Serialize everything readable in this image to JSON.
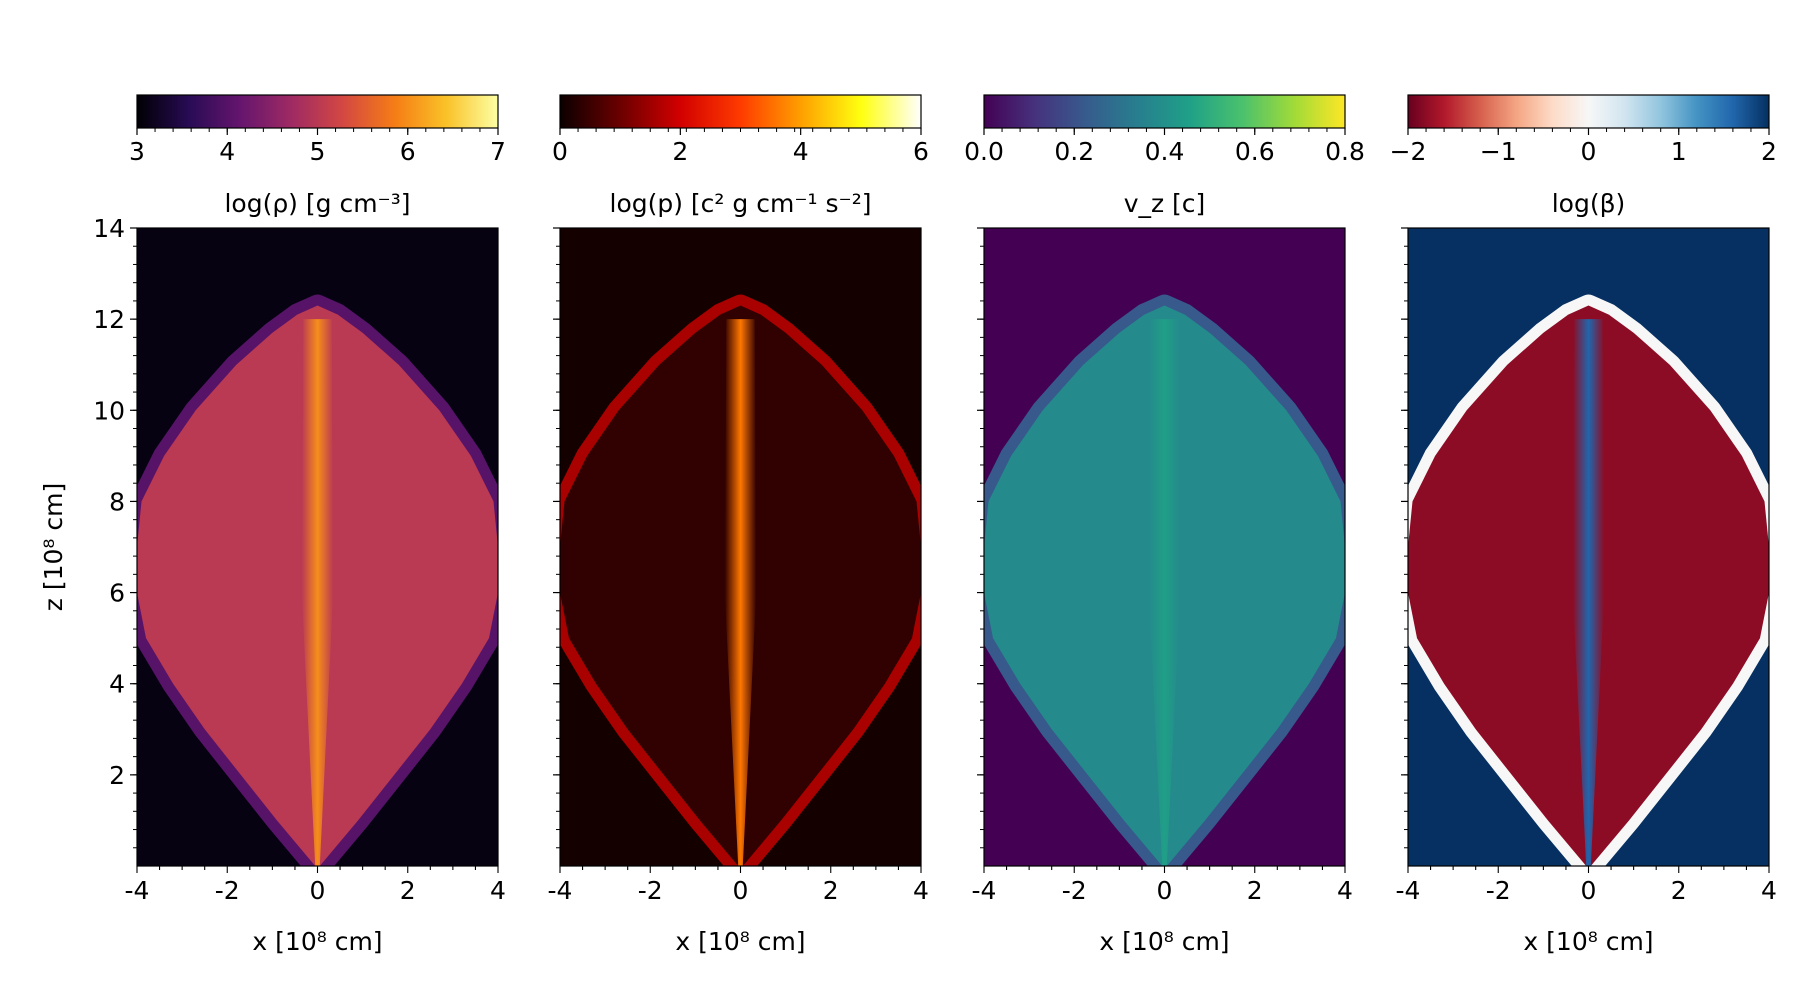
{
  "chart_data": {
    "type": "heatmap",
    "panels": [
      {
        "id": "density",
        "colorbar_label": "log(ρ) [g cm⁻³]",
        "colormap": "inferno",
        "colorbar_range": [
          3,
          7
        ],
        "colorbar_ticks": [
          3,
          4,
          5,
          6,
          7
        ],
        "colorbar_tick_labels": [
          "3",
          "4",
          "5",
          "6",
          "7"
        ],
        "colors": [
          "#000004",
          "#280b54",
          "#65156e",
          "#9f2a63",
          "#d44842",
          "#f57d15",
          "#fac228",
          "#fcffa4"
        ],
        "background_value": 3.1,
        "jet_value": 6.0,
        "cocoon_value": 5.0,
        "shell_value": 4.0
      },
      {
        "id": "pressure",
        "colorbar_label": "log(p) [c² g cm⁻¹ s⁻²]",
        "colormap": "hot",
        "colorbar_range": [
          0,
          6
        ],
        "colorbar_ticks": [
          0,
          2,
          4,
          6
        ],
        "colorbar_tick_labels": [
          "0",
          "2",
          "4",
          "6"
        ],
        "colors": [
          "#0b0000",
          "#6b0000",
          "#d20000",
          "#ff3b00",
          "#ff9f00",
          "#ffff10",
          "#ffffff"
        ],
        "background_value": 0.1,
        "jet_value": 3.6,
        "cocoon_value": 0.4,
        "shell_value": 1.6
      },
      {
        "id": "velocity",
        "colorbar_label": "v_z [c]",
        "colormap": "viridis",
        "colorbar_range": [
          0.0,
          0.8
        ],
        "colorbar_ticks": [
          0.0,
          0.2,
          0.4,
          0.6,
          0.8
        ],
        "colorbar_tick_labels": [
          "0.0",
          "0.2",
          "0.4",
          "0.6",
          "0.8"
        ],
        "colors": [
          "#440154",
          "#46327e",
          "#365c8d",
          "#277f8e",
          "#1fa187",
          "#4ac16d",
          "#a0da39",
          "#fde725"
        ],
        "background_value": 0.0,
        "jet_value": 0.45,
        "cocoon_value": 0.38,
        "shell_value": 0.22
      },
      {
        "id": "beta",
        "colorbar_label": "log(β)",
        "colormap": "RdBu",
        "colorbar_range": [
          -2,
          2
        ],
        "colorbar_ticks": [
          -2,
          -1,
          0,
          1,
          2
        ],
        "colorbar_tick_labels": [
          "−2",
          "−1",
          "0",
          "1",
          "2"
        ],
        "colors": [
          "#67001f",
          "#b2182b",
          "#d6604d",
          "#f4a582",
          "#fddbc7",
          "#f7f7f7",
          "#d1e5f0",
          "#92c5de",
          "#4393c3",
          "#2166ac",
          "#053061"
        ],
        "background_value": 2.0,
        "jet_value": 1.6,
        "cocoon_value": -1.8,
        "shell_value": 0.0
      }
    ],
    "x_axis": {
      "label": "x [10⁸ cm]",
      "range": [
        -4,
        4
      ],
      "ticks": [
        -4,
        -2,
        0,
        2,
        4
      ],
      "tick_labels": [
        "-4",
        "-2",
        "0",
        "2",
        "4"
      ]
    },
    "y_axis": {
      "label": "z [10⁸ cm]",
      "range": [
        0,
        14
      ],
      "ticks": [
        2,
        4,
        6,
        8,
        10,
        12,
        14
      ],
      "tick_labels": [
        "2",
        "4",
        "6",
        "8",
        "10",
        "12",
        "14"
      ]
    },
    "cocoon_outline": {
      "z": [
        0.0,
        1.0,
        2.0,
        3.0,
        4.0,
        5.0,
        6.0,
        7.0,
        8.0,
        9.0,
        10.0,
        11.0,
        11.7,
        12.1,
        12.3
      ],
      "half_width": [
        0.05,
        0.9,
        1.7,
        2.5,
        3.2,
        3.8,
        4.0,
        4.0,
        3.9,
        3.4,
        2.7,
        1.8,
        1.0,
        0.45,
        0.0
      ]
    },
    "jet_half_width": 0.35,
    "grid": false
  }
}
